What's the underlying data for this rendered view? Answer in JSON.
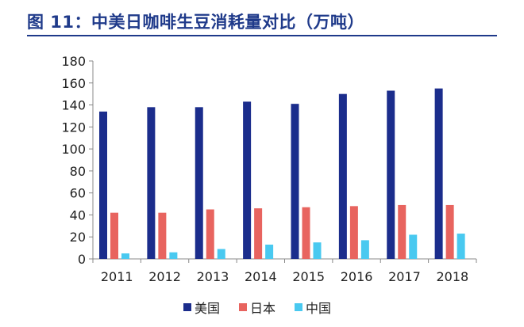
{
  "title": "图 11：中美日咖啡生豆消耗量对比（万吨）",
  "colors": {
    "title": "#1f3a8a",
    "美国": "#1b2d8c",
    "日本": "#e8645f",
    "中国": "#49c9f0"
  },
  "chart_data": {
    "type": "bar",
    "title": "图 11：中美日咖啡生豆消耗量对比（万吨）",
    "xlabel": "",
    "ylabel": "",
    "categories": [
      "2011",
      "2012",
      "2013",
      "2014",
      "2015",
      "2016",
      "2017",
      "2018"
    ],
    "series": [
      {
        "name": "美国",
        "values": [
          134,
          138,
          138,
          143,
          141,
          150,
          153,
          155
        ]
      },
      {
        "name": "日本",
        "values": [
          42,
          42,
          45,
          46,
          47,
          48,
          49,
          49
        ]
      },
      {
        "name": "中国",
        "values": [
          5,
          6,
          9,
          13,
          15,
          17,
          22,
          23
        ]
      }
    ],
    "ylim": [
      0,
      180
    ],
    "yticks": [
      0,
      20,
      40,
      60,
      80,
      100,
      120,
      140,
      160,
      180
    ],
    "grid": false,
    "legend": "bottom-center"
  }
}
